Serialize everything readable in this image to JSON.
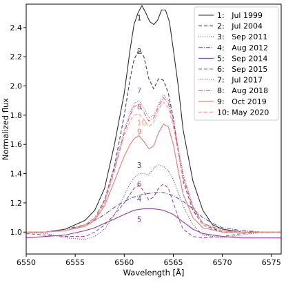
{
  "chart_data": {
    "type": "line",
    "title": "",
    "xlabel": "Wavelength [Å]",
    "ylabel": "Normalized flux",
    "xlim": [
      6550,
      6576
    ],
    "ylim": [
      0.85,
      2.56
    ],
    "xticks": [
      6550,
      6555,
      6560,
      6565,
      6570,
      6575
    ],
    "yticks": [
      1.0,
      1.2,
      1.4,
      1.6,
      1.8,
      2.0,
      2.2,
      2.4
    ],
    "ytick_labels": [
      "1.0",
      "1.2",
      "1.4",
      "1.6",
      "1.8",
      "2.0",
      "2.2",
      "2.4"
    ],
    "grid": false,
    "legend_position": "top-right",
    "series": [
      {
        "name": "1:   Jul 1999",
        "label": "1",
        "color": "#2b2b2b",
        "dash": "solid",
        "label_pos": [
          6561.3,
          2.45
        ],
        "points": [
          [
            6550,
            1.0
          ],
          [
            6552,
            1.0
          ],
          [
            6554,
            1.02
          ],
          [
            6556,
            1.08
          ],
          [
            6557,
            1.15
          ],
          [
            6558,
            1.3
          ],
          [
            6559,
            1.6
          ],
          [
            6560,
            1.95
          ],
          [
            6560.6,
            2.25
          ],
          [
            6561,
            2.42
          ],
          [
            6561.4,
            2.5
          ],
          [
            6561.8,
            2.55
          ],
          [
            6562.2,
            2.5
          ],
          [
            6562.6,
            2.44
          ],
          [
            6563,
            2.42
          ],
          [
            6563.4,
            2.45
          ],
          [
            6563.8,
            2.52
          ],
          [
            6564.2,
            2.52
          ],
          [
            6564.6,
            2.44
          ],
          [
            6565,
            2.25
          ],
          [
            6565.5,
            2.0
          ],
          [
            6566,
            1.7
          ],
          [
            6567,
            1.35
          ],
          [
            6568,
            1.15
          ],
          [
            6569,
            1.05
          ],
          [
            6570,
            1.02
          ],
          [
            6572,
            1.0
          ],
          [
            6574,
            1.0
          ],
          [
            6576,
            1.0
          ]
        ]
      },
      {
        "name": "2:   Jul 2004",
        "label": "2",
        "color": "#3b3a6e",
        "dash": "5,3",
        "label_pos": [
          6561.3,
          2.22
        ],
        "points": [
          [
            6550,
            1.0
          ],
          [
            6552,
            1.0
          ],
          [
            6554,
            1.01
          ],
          [
            6556,
            1.05
          ],
          [
            6557,
            1.1
          ],
          [
            6558,
            1.22
          ],
          [
            6559,
            1.45
          ],
          [
            6560,
            1.8
          ],
          [
            6560.6,
            2.05
          ],
          [
            6561,
            2.18
          ],
          [
            6561.5,
            2.25
          ],
          [
            6562,
            2.2
          ],
          [
            6562.5,
            2.05
          ],
          [
            6563,
            1.98
          ],
          [
            6563.5,
            2.05
          ],
          [
            6564,
            2.04
          ],
          [
            6564.5,
            1.95
          ],
          [
            6565,
            1.78
          ],
          [
            6565.5,
            1.55
          ],
          [
            6566,
            1.35
          ],
          [
            6567,
            1.15
          ],
          [
            6568,
            1.05
          ],
          [
            6570,
            1.0
          ],
          [
            6572,
            1.0
          ],
          [
            6574,
            1.0
          ],
          [
            6576,
            1.0
          ]
        ]
      },
      {
        "name": "3:   Sep 2011",
        "label": "3",
        "color": "#4a3a8a",
        "dash": "1,2",
        "label_pos": [
          6561.3,
          1.44
        ],
        "points": [
          [
            6550,
            1.0
          ],
          [
            6552,
            0.99
          ],
          [
            6554,
            0.96
          ],
          [
            6556,
            0.95
          ],
          [
            6557,
            0.97
          ],
          [
            6558,
            1.02
          ],
          [
            6559,
            1.12
          ],
          [
            6560,
            1.25
          ],
          [
            6560.6,
            1.33
          ],
          [
            6561,
            1.37
          ],
          [
            6561.5,
            1.4
          ],
          [
            6562,
            1.4
          ],
          [
            6562.5,
            1.39
          ],
          [
            6563,
            1.44
          ],
          [
            6563.5,
            1.46
          ],
          [
            6564,
            1.45
          ],
          [
            6564.5,
            1.42
          ],
          [
            6565,
            1.36
          ],
          [
            6565.5,
            1.27
          ],
          [
            6566,
            1.18
          ],
          [
            6567,
            1.05
          ],
          [
            6568,
            0.98
          ],
          [
            6570,
            0.96
          ],
          [
            6572,
            0.98
          ],
          [
            6574,
            1.0
          ],
          [
            6576,
            1.0
          ]
        ]
      },
      {
        "name": "4:   Aug 2012",
        "label": "4",
        "color": "#5a4aa0",
        "dash": "6,2,1,2",
        "label_pos": [
          6561.3,
          1.21
        ],
        "points": [
          [
            6550,
            1.0
          ],
          [
            6552,
            1.0
          ],
          [
            6554,
            1.02
          ],
          [
            6556,
            1.05
          ],
          [
            6557,
            1.08
          ],
          [
            6558,
            1.12
          ],
          [
            6559,
            1.17
          ],
          [
            6560,
            1.21
          ],
          [
            6561,
            1.24
          ],
          [
            6562,
            1.26
          ],
          [
            6563,
            1.27
          ],
          [
            6564,
            1.27
          ],
          [
            6565,
            1.25
          ],
          [
            6566,
            1.21
          ],
          [
            6567,
            1.16
          ],
          [
            6568,
            1.1
          ],
          [
            6569,
            1.06
          ],
          [
            6570,
            1.03
          ],
          [
            6572,
            1.01
          ],
          [
            6574,
            1.0
          ],
          [
            6576,
            1.0
          ]
        ]
      },
      {
        "name": "5:   Sep 2014",
        "label": "5",
        "color": "#8c3aa6",
        "dash": "solid",
        "label_pos": [
          6561.3,
          1.07
        ],
        "points": [
          [
            6550,
            0.96
          ],
          [
            6552,
            0.97
          ],
          [
            6554,
            0.98
          ],
          [
            6556,
            1.01
          ],
          [
            6557,
            1.03
          ],
          [
            6558,
            1.06
          ],
          [
            6559,
            1.09
          ],
          [
            6560,
            1.12
          ],
          [
            6561,
            1.15
          ],
          [
            6562,
            1.16
          ],
          [
            6563,
            1.16
          ],
          [
            6564,
            1.15
          ],
          [
            6565,
            1.12
          ],
          [
            6566,
            1.07
          ],
          [
            6567,
            1.02
          ],
          [
            6568,
            0.99
          ],
          [
            6570,
            0.97
          ],
          [
            6572,
            0.96
          ],
          [
            6574,
            0.96
          ],
          [
            6576,
            0.96
          ]
        ]
      },
      {
        "name": "6:   Sep 2015",
        "label": "6",
        "color": "#a3469a",
        "dash": "5,3",
        "label_pos": [
          6561.3,
          1.31
        ],
        "points": [
          [
            6550,
            0.99
          ],
          [
            6552,
            0.98
          ],
          [
            6554,
            0.97
          ],
          [
            6556,
            0.97
          ],
          [
            6557,
            1.0
          ],
          [
            6558,
            1.05
          ],
          [
            6559,
            1.12
          ],
          [
            6560,
            1.2
          ],
          [
            6560.6,
            1.26
          ],
          [
            6561,
            1.3
          ],
          [
            6561.5,
            1.32
          ],
          [
            6562,
            1.28
          ],
          [
            6562.5,
            1.22
          ],
          [
            6563,
            1.24
          ],
          [
            6563.5,
            1.3
          ],
          [
            6564,
            1.33
          ],
          [
            6564.5,
            1.3
          ],
          [
            6565,
            1.2
          ],
          [
            6565.5,
            1.1
          ],
          [
            6566,
            1.02
          ],
          [
            6567,
            0.97
          ],
          [
            6568,
            0.96
          ],
          [
            6570,
            0.97
          ],
          [
            6572,
            0.99
          ],
          [
            6574,
            1.0
          ],
          [
            6576,
            1.0
          ]
        ]
      },
      {
        "name": "7:   Jul 2017",
        "label": "7",
        "color": "#c24a8a",
        "dash": "1,2",
        "label_pos": [
          6561.3,
          1.95
        ],
        "points": [
          [
            6550,
            1.0
          ],
          [
            6552,
            1.0
          ],
          [
            6554,
            1.01
          ],
          [
            6556,
            1.05
          ],
          [
            6557,
            1.1
          ],
          [
            6558,
            1.22
          ],
          [
            6559,
            1.45
          ],
          [
            6560,
            1.7
          ],
          [
            6560.6,
            1.82
          ],
          [
            6561,
            1.88
          ],
          [
            6561.5,
            1.9
          ],
          [
            6562,
            1.85
          ],
          [
            6562.5,
            1.78
          ],
          [
            6563,
            1.8
          ],
          [
            6563.5,
            1.88
          ],
          [
            6564,
            1.94
          ],
          [
            6564.5,
            1.9
          ],
          [
            6565,
            1.78
          ],
          [
            6565.5,
            1.58
          ],
          [
            6566,
            1.4
          ],
          [
            6567,
            1.18
          ],
          [
            6568,
            1.06
          ],
          [
            6570,
            1.01
          ],
          [
            6572,
            1.0
          ],
          [
            6574,
            1.0
          ],
          [
            6576,
            1.0
          ]
        ]
      },
      {
        "name": "8:   Aug 2018",
        "label": "8",
        "color": "#d75a78",
        "dash": "6,2,1,2",
        "label_pos": [
          6561.3,
          1.84
        ],
        "points": [
          [
            6550,
            1.0
          ],
          [
            6552,
            1.0
          ],
          [
            6554,
            1.01
          ],
          [
            6556,
            1.05
          ],
          [
            6557,
            1.09
          ],
          [
            6558,
            1.2
          ],
          [
            6559,
            1.42
          ],
          [
            6560,
            1.68
          ],
          [
            6560.6,
            1.8
          ],
          [
            6561,
            1.86
          ],
          [
            6561.5,
            1.87
          ],
          [
            6562,
            1.82
          ],
          [
            6562.5,
            1.76
          ],
          [
            6563,
            1.78
          ],
          [
            6563.5,
            1.86
          ],
          [
            6564,
            1.92
          ],
          [
            6564.5,
            1.88
          ],
          [
            6565,
            1.75
          ],
          [
            6565.5,
            1.56
          ],
          [
            6566,
            1.38
          ],
          [
            6567,
            1.17
          ],
          [
            6568,
            1.06
          ],
          [
            6570,
            1.01
          ],
          [
            6572,
            1.0
          ],
          [
            6574,
            1.0
          ],
          [
            6576,
            1.0
          ]
        ]
      },
      {
        "name": "9:   Oct 2019",
        "label": "9",
        "color": "#e8786e",
        "dash": "solid",
        "label_pos": [
          6561.3,
          1.67
        ],
        "points": [
          [
            6550,
            1.0
          ],
          [
            6552,
            1.0
          ],
          [
            6554,
            1.01
          ],
          [
            6556,
            1.04
          ],
          [
            6557,
            1.08
          ],
          [
            6558,
            1.18
          ],
          [
            6559,
            1.35
          ],
          [
            6560,
            1.52
          ],
          [
            6560.6,
            1.6
          ],
          [
            6561,
            1.64
          ],
          [
            6561.5,
            1.66
          ],
          [
            6562,
            1.62
          ],
          [
            6562.5,
            1.57
          ],
          [
            6563,
            1.59
          ],
          [
            6563.5,
            1.68
          ],
          [
            6564,
            1.74
          ],
          [
            6564.5,
            1.72
          ],
          [
            6565,
            1.6
          ],
          [
            6565.5,
            1.42
          ],
          [
            6566,
            1.26
          ],
          [
            6567,
            1.1
          ],
          [
            6568,
            1.03
          ],
          [
            6570,
            1.0
          ],
          [
            6572,
            1.0
          ],
          [
            6574,
            1.0
          ],
          [
            6576,
            1.0
          ]
        ]
      },
      {
        "name": "10: May 2020",
        "label": "10",
        "color": "#f4a08a",
        "dash": "5,3",
        "label_pos": [
          6561.3,
          1.73
        ],
        "points": [
          [
            6550,
            1.0
          ],
          [
            6552,
            1.0
          ],
          [
            6554,
            1.01
          ],
          [
            6556,
            1.05
          ],
          [
            6557,
            1.1
          ],
          [
            6558,
            1.21
          ],
          [
            6559,
            1.43
          ],
          [
            6560,
            1.66
          ],
          [
            6560.6,
            1.76
          ],
          [
            6561,
            1.8
          ],
          [
            6561.5,
            1.81
          ],
          [
            6562,
            1.77
          ],
          [
            6562.5,
            1.72
          ],
          [
            6563,
            1.75
          ],
          [
            6563.5,
            1.84
          ],
          [
            6564,
            1.89
          ],
          [
            6564.5,
            1.85
          ],
          [
            6565,
            1.72
          ],
          [
            6565.5,
            1.54
          ],
          [
            6566,
            1.36
          ],
          [
            6567,
            1.16
          ],
          [
            6568,
            1.05
          ],
          [
            6570,
            1.01
          ],
          [
            6572,
            1.0
          ],
          [
            6574,
            1.0
          ],
          [
            6576,
            1.0
          ]
        ]
      }
    ]
  }
}
